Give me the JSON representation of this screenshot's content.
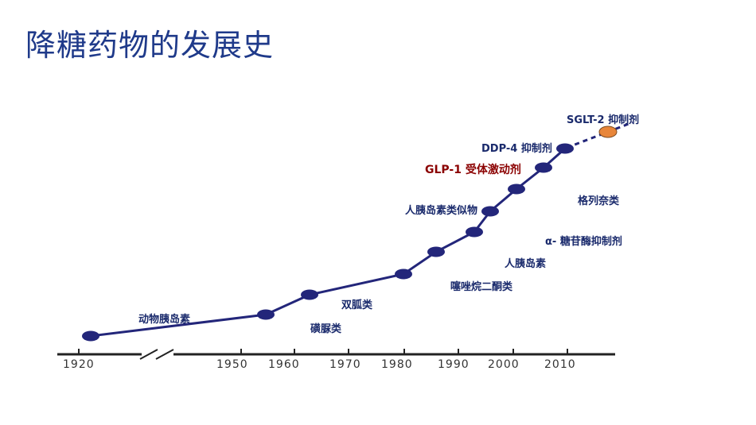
{
  "title": "降糖药物的发展史",
  "axis": {
    "ticks": [
      "1920",
      "1950",
      "1960",
      "1970",
      "1980",
      "1990",
      "2000",
      "2010"
    ]
  },
  "labels": {
    "animal_insulin": "动物胰岛素",
    "sulfonylureas": "磺脲类",
    "biguanides": "双胍类",
    "tzd": "噻唑烷二酮类",
    "human_insulin": "人胰岛素",
    "alpha_glucosidase": "α- 糖苷酶抑制剂",
    "glinides": "格列奈类",
    "insulin_analogs": "人胰岛素类似物",
    "glp1": "GLP-1 受体激动剂",
    "dpp4": "DDP-4 抑制剂",
    "sglt2": "SGLT-2 抑制剂"
  },
  "colors": {
    "line": "#23267a",
    "highlight": "#8b0000",
    "future": "#e8863a",
    "title": "#1f3a8a"
  }
}
